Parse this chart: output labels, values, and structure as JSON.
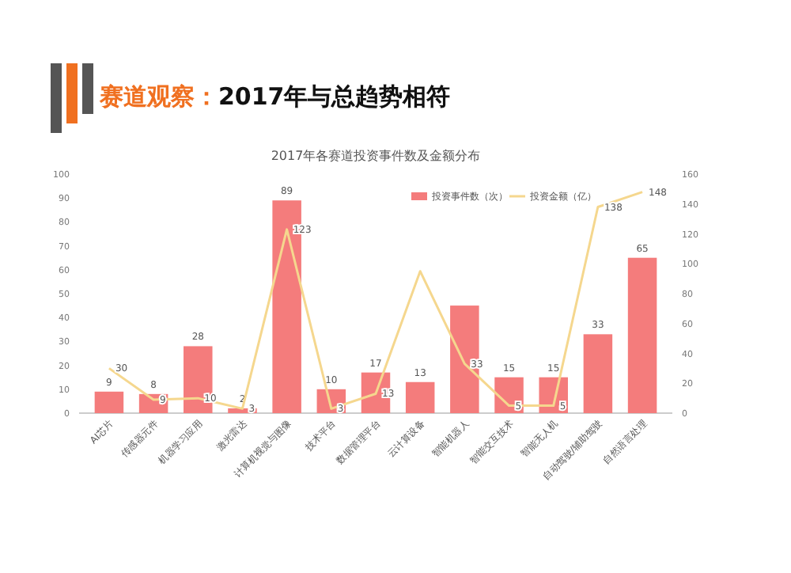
{
  "chart_data": {
    "type": "bar",
    "title": "赛道观察：2017年与总趋势相符",
    "subtitle": "2017年各赛道投资事件数及金额分布",
    "categories": [
      "AI芯片",
      "传感器元件",
      "机器学习应用",
      "激光雷达",
      "计算机视觉与图像",
      "技术平台",
      "数据管理平台",
      "云计算设备",
      "智能机器人",
      "智能交互技术",
      "智能无人机",
      "自动驾驶/辅助驾驶",
      "自然语言处理"
    ],
    "series": [
      {
        "name": "投资事件数（次）",
        "color": "#f47c7c",
        "values": [
          9,
          8,
          28,
          2,
          89,
          10,
          17,
          13,
          45,
          15,
          15,
          33,
          65
        ],
        "value_labels": [
          "9",
          "8",
          "28",
          "2",
          "89",
          "10",
          "17",
          "13",
          null,
          "15",
          "15",
          "33",
          "65"
        ]
      },
      {
        "name": "投资金额（亿）",
        "type": "line",
        "axis": "y2",
        "color": "#f5d78e",
        "values": [
          30,
          9,
          10,
          3,
          123,
          3,
          13,
          95,
          33,
          5,
          5,
          138,
          148
        ],
        "value_labels": [
          "30",
          "9",
          "10",
          "3",
          "123",
          "3",
          "13",
          null,
          "33",
          "5",
          "5",
          "138",
          "148"
        ]
      }
    ],
    "ylim": [
      0,
      100
    ],
    "yticks": [
      0,
      10,
      20,
      30,
      40,
      50,
      60,
      70,
      80,
      90,
      100
    ],
    "y2lim": [
      0,
      160
    ],
    "y2ticks": [
      0,
      20,
      40,
      60,
      80,
      100,
      120,
      140,
      160
    ],
    "legend": "top right"
  }
}
